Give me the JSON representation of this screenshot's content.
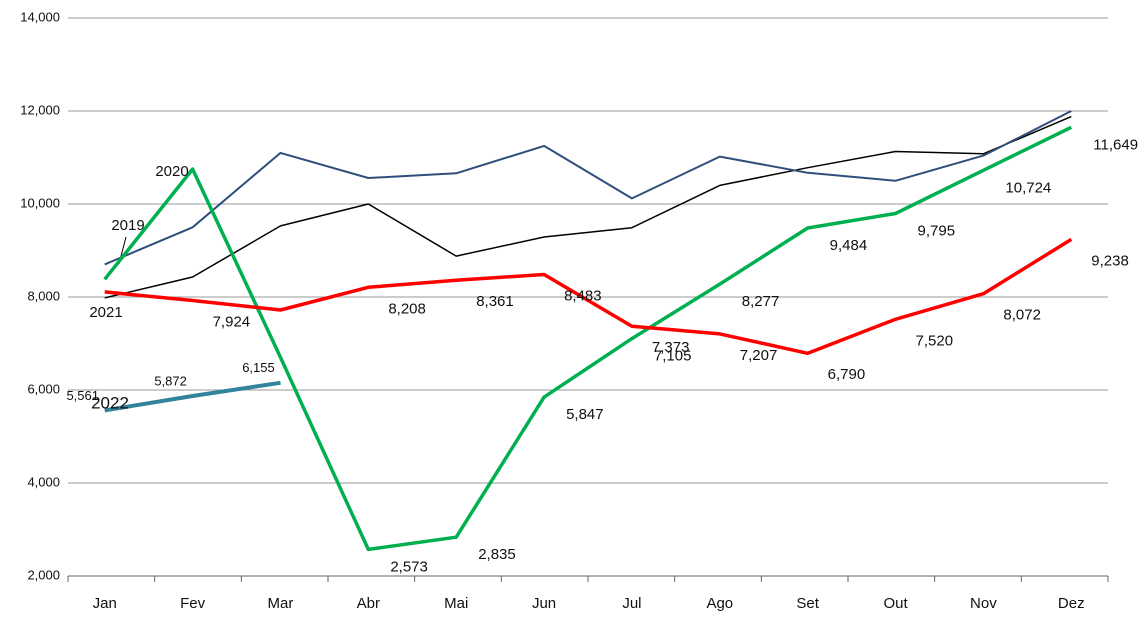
{
  "chart_data": {
    "type": "line",
    "categories": [
      "Jan",
      "Fev",
      "Mar",
      "Abr",
      "Mai",
      "Jun",
      "Jul",
      "Ago",
      "Set",
      "Out",
      "Nov",
      "Dez"
    ],
    "ylim": [
      2000,
      14000
    ],
    "yticks": [
      {
        "value": 2000,
        "label": "2,000"
      },
      {
        "value": 4000,
        "label": "4,000"
      },
      {
        "value": 6000,
        "label": "6,000"
      },
      {
        "value": 8000,
        "label": "8,000"
      },
      {
        "value": 10000,
        "label": "10,000"
      },
      {
        "value": 12000,
        "label": "12,000"
      },
      {
        "value": 14000,
        "label": "14,000"
      }
    ],
    "grid": true,
    "series": [
      {
        "color": "#000000",
        "values": [
          7980,
          8430,
          9530,
          10000,
          8880,
          9290,
          9490,
          10400,
          10780,
          11130,
          11080,
          11880
        ]
      },
      {
        "name": "2019",
        "color": "#2e4f7c",
        "values": [
          8700,
          9500,
          11100,
          10560,
          10660,
          11250,
          10120,
          11020,
          10670,
          10500,
          11040,
          12000
        ]
      },
      {
        "name": "2020",
        "color": "#00b050",
        "values": [
          8380,
          10750,
          6700,
          2573,
          2835,
          5847,
          7105,
          8277,
          9484,
          9795,
          10724,
          11649
        ],
        "value_labels": [
          null,
          null,
          null,
          "2,573",
          "2,835",
          "5,847",
          "7,105",
          "8,277",
          "9,484",
          "9,795",
          "10,724",
          "11,649"
        ]
      },
      {
        "name": "2021",
        "color": "#ff0000",
        "values": [
          8110,
          7924,
          7720,
          8208,
          8361,
          8483,
          7373,
          7207,
          6790,
          7520,
          8072,
          9238
        ],
        "value_labels": [
          null,
          "7,924",
          null,
          "8,208",
          "8,361",
          "8,483",
          "7,373",
          "7,207",
          "6,790",
          "7,520",
          "8,072",
          "9,238"
        ]
      },
      {
        "name": "2022",
        "color": "#31849b",
        "values": [
          5561,
          5872,
          6155,
          null,
          null,
          null,
          null,
          null,
          null,
          null,
          null,
          null
        ],
        "value_labels": [
          "5,561",
          "5,872",
          "6,155",
          null,
          null,
          null,
          null,
          null,
          null,
          null,
          null,
          null
        ]
      }
    ]
  }
}
